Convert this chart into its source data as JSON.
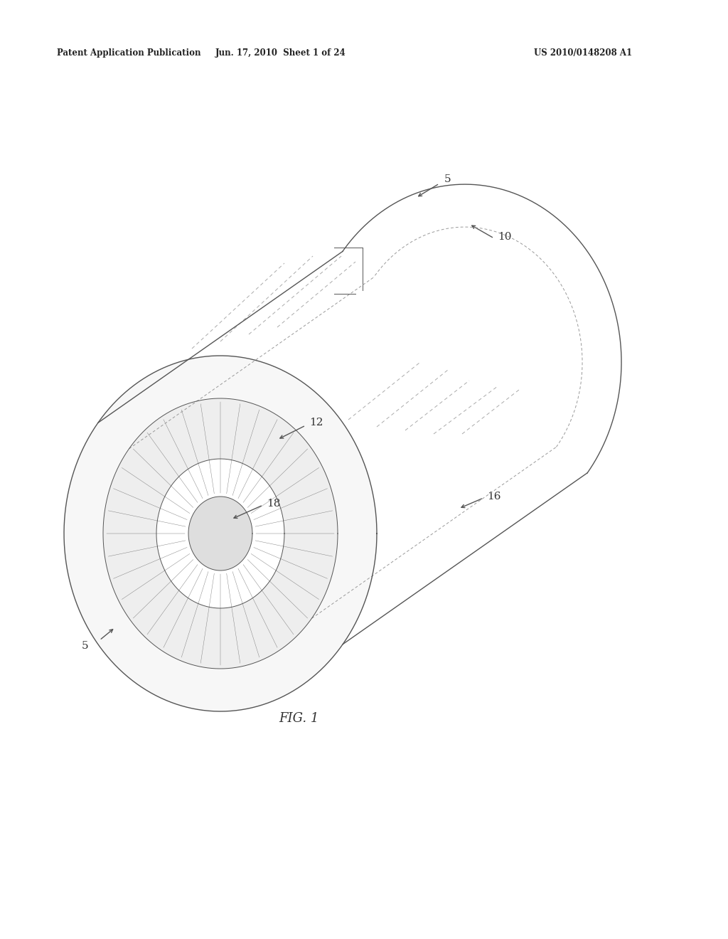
{
  "bg_color": "#ffffff",
  "header_left": "Patent Application Publication",
  "header_mid": "Jun. 17, 2010  Sheet 1 of 24",
  "header_right": "US 2010/0148208 A1",
  "fig_caption": "FIG. 1",
  "line_color": "#555555",
  "dash_color": "#999999",
  "fill_gray_light": "#e0e0e0",
  "fill_gray_med": "#c8c8c8",
  "tilt_deg": 35
}
